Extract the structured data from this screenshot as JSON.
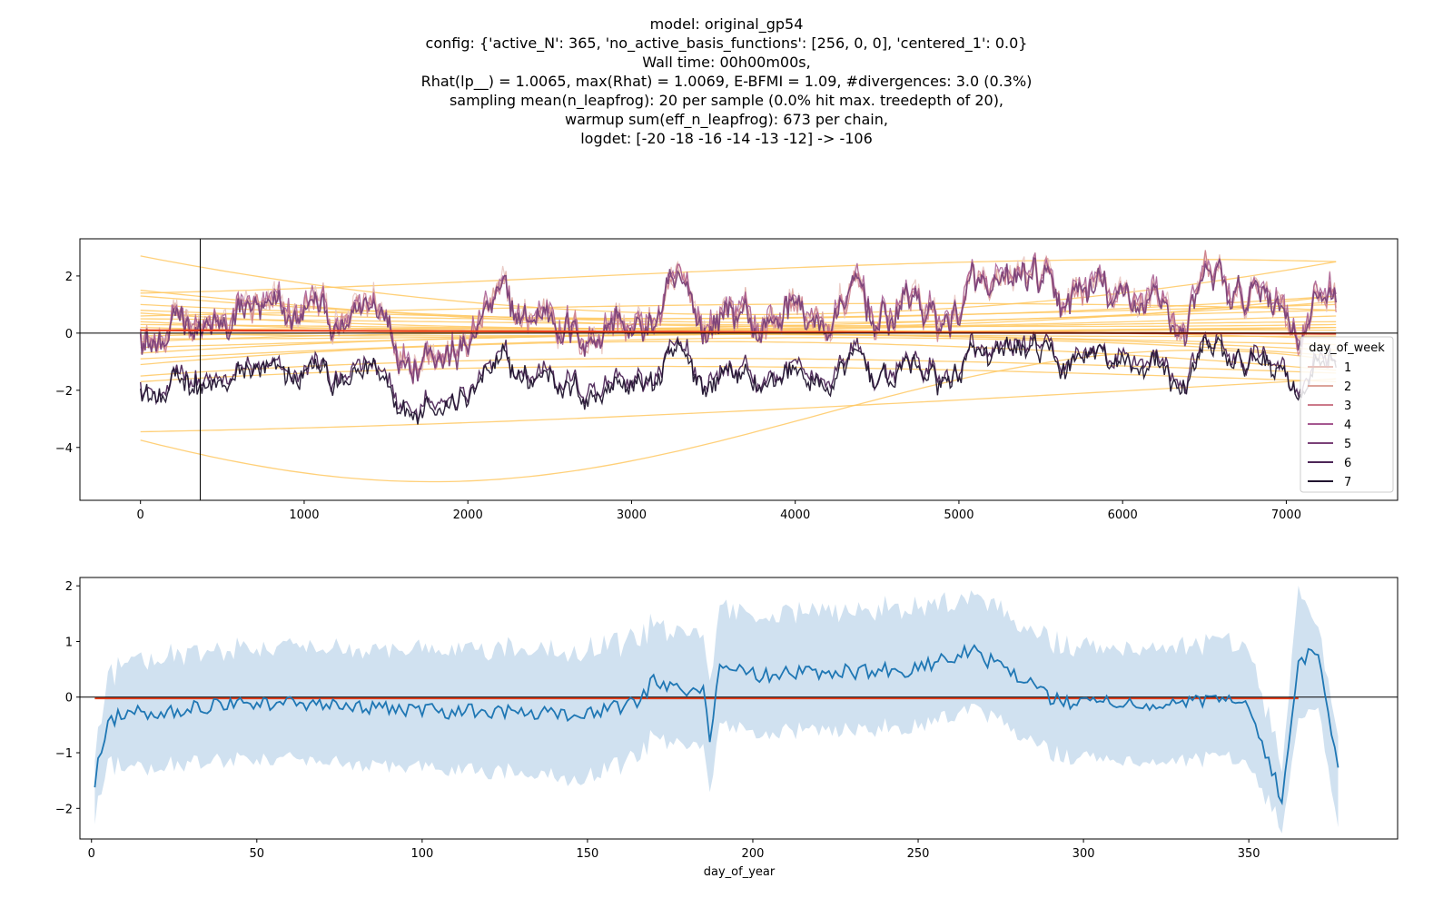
{
  "title_lines": [
    "model: original_gp54",
    "config: {'active_N': 365, 'no_active_basis_functions': [256, 0, 0], 'centered_1': 0.0}",
    "Wall time: 00h00m00s,",
    "Rhat(lp__) = 1.0065, max(Rhat) = 1.0069, E-BFMI = 1.09, #divergences: 3.0 (0.3%)",
    "sampling mean(n_leapfrog): 20 per sample (0.0% hit max. treedepth of 20),",
    "warmup sum(eff_n_leapfrog): 673 per chain,",
    "logdet: [-20 -18 -16 -14 -13 -12] -> -106"
  ],
  "chart_data": [
    {
      "type": "line",
      "xlabel": "",
      "ylabel": "",
      "xlim": [
        -370,
        7680
      ],
      "ylim": [
        -5.85,
        3.3
      ],
      "xticks": [
        0,
        1000,
        2000,
        3000,
        4000,
        5000,
        6000,
        7000
      ],
      "yticks": [
        -4,
        -2,
        0,
        2
      ],
      "vline_x": 365,
      "hline_y": 0,
      "x_range": [
        0,
        7304
      ],
      "legend": {
        "title": "day_of_week",
        "placement": "center-right",
        "entries": [
          "1",
          "2",
          "3",
          "4",
          "5",
          "6",
          "7"
        ],
        "colors": [
          "#e8c3bd",
          "#dca49a",
          "#cc7a8a",
          "#a55890",
          "#7a4178",
          "#4d2657",
          "#21152f"
        ]
      },
      "series_note_levels": {
        "weekday_high_group": [
          "1",
          "2",
          "3",
          "4",
          "5"
        ],
        "weekend_low_group": [
          "6",
          "7"
        ]
      },
      "component_curve_color": "#ffc861",
      "mean_curve_color": "#e8401c"
    },
    {
      "type": "area",
      "xlabel": "day_of_year",
      "ylabel": "",
      "xlim": [
        -3.5,
        395
      ],
      "ylim": [
        -2.55,
        2.15
      ],
      "xticks": [
        0,
        50,
        100,
        150,
        200,
        250,
        300,
        350
      ],
      "yticks": [
        -2,
        -1,
        0,
        1,
        2
      ],
      "hline_y": 0,
      "line_color": "#1f77b4",
      "band_color": "#a9c9e3",
      "mean_curve_color": "#e8401c",
      "key_points": [
        {
          "x": 1,
          "y": -1.5,
          "lo": -2.1,
          "hi": -0.9
        },
        {
          "x": 5,
          "y": -0.45,
          "lo": -1.2,
          "hi": 0.3
        },
        {
          "x": 10,
          "y": -0.3,
          "lo": -1.25,
          "hi": 0.7
        },
        {
          "x": 50,
          "y": -0.1,
          "lo": -1.1,
          "hi": 0.9
        },
        {
          "x": 100,
          "y": -0.25,
          "lo": -1.3,
          "hi": 0.8
        },
        {
          "x": 150,
          "y": -0.3,
          "lo": -1.45,
          "hi": 0.85
        },
        {
          "x": 165,
          "y": -0.1,
          "lo": -1.1,
          "hi": 1.0
        },
        {
          "x": 170,
          "y": 0.3,
          "lo": -0.7,
          "hi": 1.3
        },
        {
          "x": 185,
          "y": 0.1,
          "lo": -0.9,
          "hi": 1.1
        },
        {
          "x": 187,
          "y": -0.8,
          "lo": -1.75,
          "hi": 0.2
        },
        {
          "x": 190,
          "y": 0.55,
          "lo": -0.5,
          "hi": 1.6
        },
        {
          "x": 200,
          "y": 0.4,
          "lo": -0.65,
          "hi": 1.45
        },
        {
          "x": 250,
          "y": 0.5,
          "lo": -0.55,
          "hi": 1.6
        },
        {
          "x": 265,
          "y": 0.85,
          "lo": -0.15,
          "hi": 1.85
        },
        {
          "x": 280,
          "y": 0.4,
          "lo": -0.6,
          "hi": 1.4
        },
        {
          "x": 290,
          "y": -0.05,
          "lo": -1.05,
          "hi": 0.95
        },
        {
          "x": 300,
          "y": -0.1,
          "lo": -1.1,
          "hi": 0.9
        },
        {
          "x": 350,
          "y": -0.1,
          "lo": -1.15,
          "hi": 0.95
        },
        {
          "x": 360,
          "y": -1.85,
          "lo": -2.35,
          "hi": -1.2
        },
        {
          "x": 365,
          "y": 0.55,
          "lo": -0.5,
          "hi": 1.85
        },
        {
          "x": 371,
          "y": 0.9,
          "lo": -0.1,
          "hi": 1.3
        },
        {
          "x": 377,
          "y": -1.3,
          "lo": -2.3,
          "hi": -0.6
        }
      ]
    }
  ]
}
